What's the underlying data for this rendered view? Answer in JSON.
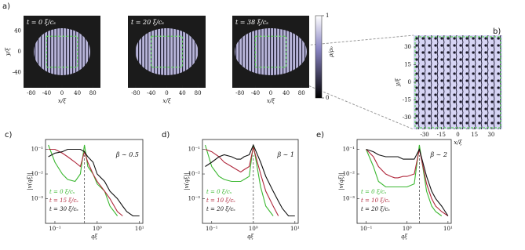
{
  "chart_data": [
    {
      "type": "image",
      "label": "a)",
      "annotation": "t = 0 ξ/cₛ",
      "xlim": [
        -100,
        100
      ],
      "ylim": [
        -70,
        70
      ],
      "xticks": [
        -80,
        -40,
        0,
        40,
        80
      ],
      "yticks": [
        -40,
        0,
        40
      ],
      "xlabel": "x/ξ",
      "ylabel": "y/ξ"
    },
    {
      "type": "image",
      "annotation": "t = 20 ξ/cₛ",
      "xlim": [
        -100,
        100
      ],
      "ylim": [
        -70,
        70
      ],
      "xticks": [
        -80,
        -40,
        0,
        40,
        80
      ],
      "xlabel": "x/ξ"
    },
    {
      "type": "image",
      "annotation": "t = 38 ξ/cₛ",
      "xlim": [
        -100,
        100
      ],
      "ylim": [
        -70,
        70
      ],
      "xticks": [
        -80,
        -40,
        0,
        40,
        80
      ],
      "xlabel": "x/ξ",
      "colorbar": {
        "label": "ρ/ρ₀",
        "ticks": [
          0,
          1
        ]
      }
    },
    {
      "type": "image",
      "label": "b)",
      "xlim": [
        -40,
        40
      ],
      "ylim": [
        -40,
        40
      ],
      "xticks": [
        -30,
        -15,
        0,
        15,
        30
      ],
      "yticks": [
        -30,
        -15,
        0,
        15,
        30
      ],
      "xlabel": "x/ξ",
      "ylabel": "y/ξ"
    },
    {
      "type": "line",
      "label": "c)",
      "annotation": "β ∼ 0.5",
      "log_x": true,
      "log_y": true,
      "xlabel": "qξ",
      "ylabel": "|v(qξ)|",
      "xlim": [
        0.06,
        12
      ],
      "ylim": [
        0.0001,
        0.25
      ],
      "xticks": [
        {
          "value": 0.1,
          "label": "10⁻¹"
        },
        {
          "value": 1,
          "label": "10⁰"
        },
        {
          "value": 10,
          "label": "10¹"
        }
      ],
      "yticks": [
        {
          "value": 0.001,
          "label": "10⁻³"
        },
        {
          "value": 0.01,
          "label": "10⁻²"
        },
        {
          "value": 0.1,
          "label": "10⁻¹"
        }
      ],
      "marker_x": 0.5,
      "x": [
        0.07,
        0.1,
        0.15,
        0.2,
        0.3,
        0.4,
        0.5,
        0.6,
        0.8,
        1,
        1.5,
        2,
        3,
        4,
        5,
        7,
        10
      ],
      "series": [
        {
          "name": "t = 0 ξ/cₛ",
          "color": "#3cb832",
          "values": [
            0.15,
            0.03,
            0.01,
            0.006,
            0.005,
            0.01,
            0.15,
            0.02,
            0.01,
            0.004,
            0.002,
            0.0005,
            0.0002,
            null,
            null,
            null,
            null
          ]
        },
        {
          "name": "t = 15 ξ/cₛ",
          "color": "#b0283c",
          "values": [
            0.1,
            0.1,
            0.07,
            0.05,
            0.03,
            0.02,
            0.08,
            0.03,
            0.01,
            0.005,
            0.002,
            0.001,
            0.0003,
            0.0002,
            null,
            null,
            null
          ]
        },
        {
          "name": "t = 30 ξ/cₛ",
          "color": "#111111",
          "values": [
            0.05,
            0.07,
            0.08,
            0.1,
            0.1,
            0.1,
            0.08,
            0.05,
            0.03,
            0.01,
            0.005,
            0.002,
            0.001,
            0.0005,
            0.0003,
            0.0002,
            0.0002
          ]
        }
      ]
    },
    {
      "type": "line",
      "label": "d)",
      "annotation": "β ∼ 1",
      "log_x": true,
      "log_y": true,
      "xlabel": "qξ",
      "ylabel": "|v(qξ)|",
      "xlim": [
        0.06,
        12
      ],
      "ylim": [
        0.0001,
        0.25
      ],
      "xticks": [
        {
          "value": 0.1,
          "label": "10⁻¹"
        },
        {
          "value": 1,
          "label": "10⁰"
        },
        {
          "value": 10,
          "label": "10¹"
        }
      ],
      "yticks": [
        {
          "value": 0.001,
          "label": "10⁻³"
        },
        {
          "value": 0.01,
          "label": "10⁻²"
        },
        {
          "value": 0.1,
          "label": "10⁻¹"
        }
      ],
      "marker_x": 1,
      "x": [
        0.07,
        0.1,
        0.15,
        0.2,
        0.3,
        0.4,
        0.5,
        0.6,
        0.8,
        1,
        1.5,
        2,
        3,
        4,
        5,
        7,
        10
      ],
      "series": [
        {
          "name": "t = 0 ξ/cₛ",
          "color": "#3cb832",
          "values": [
            0.15,
            0.02,
            0.008,
            0.006,
            0.005,
            0.005,
            0.005,
            0.006,
            0.008,
            0.15,
            0.003,
            0.0005,
            0.0002,
            null,
            null,
            null,
            null
          ]
        },
        {
          "name": "t = 10 ξ/cₛ",
          "color": "#b0283c",
          "values": [
            0.1,
            0.08,
            0.05,
            0.03,
            0.02,
            0.015,
            0.012,
            0.015,
            0.02,
            0.12,
            0.01,
            0.002,
            0.0005,
            0.0002,
            null,
            null,
            null
          ]
        },
        {
          "name": "t = 20 ξ/cₛ",
          "color": "#111111",
          "values": [
            0.02,
            0.03,
            0.05,
            0.06,
            0.05,
            0.04,
            0.04,
            0.05,
            0.06,
            0.15,
            0.03,
            0.008,
            0.002,
            0.0008,
            0.0004,
            0.0002,
            0.0002
          ]
        }
      ]
    },
    {
      "type": "line",
      "label": "e)",
      "annotation": "β ∼ 2",
      "log_x": true,
      "log_y": true,
      "xlabel": "qξ",
      "ylabel": "|v(qξ)|",
      "xlim": [
        0.06,
        12
      ],
      "ylim": [
        0.0001,
        0.25
      ],
      "xticks": [
        {
          "value": 0.1,
          "label": "10⁻¹"
        },
        {
          "value": 1,
          "label": "10⁰"
        },
        {
          "value": 10,
          "label": "10¹"
        }
      ],
      "yticks": [
        {
          "value": 0.001,
          "label": "10⁻³"
        },
        {
          "value": 0.01,
          "label": "10⁻²"
        },
        {
          "value": 0.1,
          "label": "10⁻¹"
        }
      ],
      "marker_x": 2,
      "x": [
        0.1,
        0.15,
        0.2,
        0.3,
        0.4,
        0.5,
        0.6,
        0.8,
        1,
        1.5,
        2,
        3,
        4,
        5,
        7,
        10
      ],
      "series": [
        {
          "name": "t = 0 ξ/cₛ",
          "color": "#3cb832",
          "values": [
            0.1,
            0.02,
            0.005,
            0.003,
            0.003,
            0.003,
            0.003,
            0.003,
            0.003,
            0.004,
            0.15,
            0.002,
            0.0005,
            0.0003,
            0.0002,
            null
          ]
        },
        {
          "name": "t = 10 ξ/cₛ",
          "color": "#b0283c",
          "values": [
            0.1,
            0.05,
            0.02,
            0.01,
            0.008,
            0.007,
            0.007,
            0.008,
            0.008,
            0.01,
            0.1,
            0.004,
            0.001,
            0.0005,
            0.0003,
            0.0002
          ]
        },
        {
          "name": "t = 20 ξ/cₛ",
          "color": "#111111",
          "values": [
            0.1,
            0.08,
            0.06,
            0.05,
            0.05,
            0.05,
            0.05,
            0.04,
            0.04,
            0.04,
            0.1,
            0.008,
            0.002,
            0.001,
            0.0005,
            0.0002
          ]
        }
      ]
    }
  ]
}
